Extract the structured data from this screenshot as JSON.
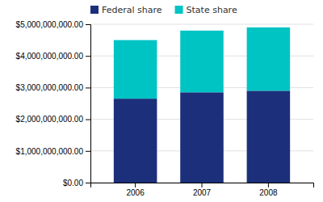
{
  "chart_data": {
    "type": "bar",
    "stacked": true,
    "categories": [
      "2006",
      "2007",
      "2008"
    ],
    "series": [
      {
        "name": "Federal share",
        "color": "#1c2f7a",
        "values": [
          2650000000,
          2850000000,
          2900000000
        ]
      },
      {
        "name": "State share",
        "color": "#00c4c4",
        "values": [
          1850000000,
          1950000000,
          2000000000
        ]
      }
    ],
    "ylim": [
      0,
      5000000000
    ],
    "yticks": [
      {
        "value": 0,
        "label": "$0.00"
      },
      {
        "value": 1000000000,
        "label": "$1,000,000,000.00"
      },
      {
        "value": 2000000000,
        "label": "$2,000,000,000.00"
      },
      {
        "value": 3000000000,
        "label": "$3,000,000,000.00"
      },
      {
        "value": 4000000000,
        "label": "$4,000,000,000.00"
      },
      {
        "value": 5000000000,
        "label": "$5,000,000,000.00"
      }
    ],
    "grid": true,
    "legend": "upper left"
  }
}
